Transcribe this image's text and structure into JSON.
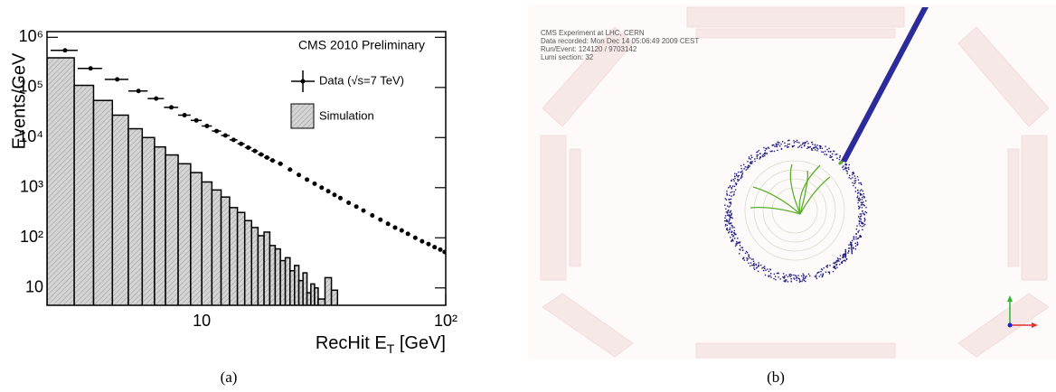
{
  "chart_data": {
    "type": "histogram_with_points",
    "annotation": "CMS 2010 Preliminary",
    "y_label": "Events/GeV",
    "x_label": [
      "RecHit E",
      "T",
      " [GeV]"
    ],
    "log_x": true,
    "log_y": true,
    "xlim": [
      2.32,
      100
    ],
    "ylim": [
      4.5,
      1300000
    ],
    "xticks": [
      10,
      {
        "value": 100,
        "label": "10²"
      }
    ],
    "yticks": [
      10,
      {
        "value": 100,
        "label": "10²"
      },
      {
        "value": 1000,
        "label": "10³"
      },
      {
        "value": 10000,
        "label": "10⁴"
      },
      {
        "value": 100000,
        "label": "10⁵"
      },
      {
        "value": 1000000,
        "label": "10⁶"
      }
    ],
    "points": {
      "name": "Data (√s=7 TeV)",
      "color": "#000000",
      "x": [
        2.75,
        3.5,
        4.5,
        5.5,
        6.5,
        7.5,
        8.5,
        9.5,
        10.5,
        11.5,
        12.5,
        13.5,
        14.5,
        15.5,
        16.5,
        17.5,
        18.5,
        19.5,
        21,
        23,
        25,
        27,
        29,
        31,
        33,
        35,
        37,
        40,
        43,
        46,
        50,
        54,
        58,
        62,
        66,
        70,
        75,
        80,
        85,
        90,
        95,
        99
      ],
      "xerr": [
        0.35,
        0.4,
        0.5,
        0.5,
        0.5,
        0.5,
        0.5,
        0.5,
        0.5,
        0.5,
        0.5,
        0.5,
        0.5,
        0.5,
        0.5,
        0.5,
        0.5,
        0.5,
        0.5,
        0.5,
        0.5,
        0.5,
        0.5,
        0.5,
        0.5,
        0.5,
        0.5,
        0.5,
        0.5,
        0.5,
        0.5,
        0.5,
        0.5,
        0.5,
        0.5,
        0.5,
        0.5,
        0.5,
        0.5,
        0.5,
        0.5,
        0.5
      ],
      "values": [
        550000,
        240000,
        145000,
        85000,
        60000,
        40000,
        28000,
        22000,
        17000,
        13500,
        11000,
        9000,
        7500,
        6300,
        5400,
        4600,
        4000,
        3500,
        3000,
        2300,
        1800,
        1450,
        1200,
        1000,
        850,
        720,
        620,
        500,
        420,
        350,
        280,
        230,
        190,
        160,
        140,
        120,
        100,
        85,
        75,
        65,
        58,
        52
      ]
    },
    "histogram": {
      "name": "Simulation",
      "color": "#c8c8c8",
      "bins": [
        2.32,
        3,
        3.6,
        4.3,
        5,
        5.7,
        6.4,
        7.1,
        8,
        9,
        10,
        11,
        12,
        13,
        14,
        15,
        16,
        17,
        18,
        19,
        20,
        21,
        22,
        23,
        24,
        25,
        26,
        27,
        28,
        29,
        30,
        32,
        34,
        36
      ],
      "values": [
        390000,
        110000,
        55000,
        28000,
        15000,
        10000,
        6500,
        4500,
        3000,
        2000,
        1300,
        900,
        650,
        400,
        320,
        220,
        160,
        110,
        130,
        70,
        60,
        35,
        40,
        22,
        28,
        14,
        20,
        8,
        12,
        10,
        6,
        16,
        9
      ]
    }
  },
  "event_display": {
    "lines": [
      "CMS Experiment at LHC, CERN",
      "Data recorded: Mon Dec 14 05:06:49 2009 CEST",
      "Run/Event: 124120 / 9703142",
      "Lumi section: 32"
    ]
  },
  "captions": [
    "(a)",
    "(b)"
  ]
}
